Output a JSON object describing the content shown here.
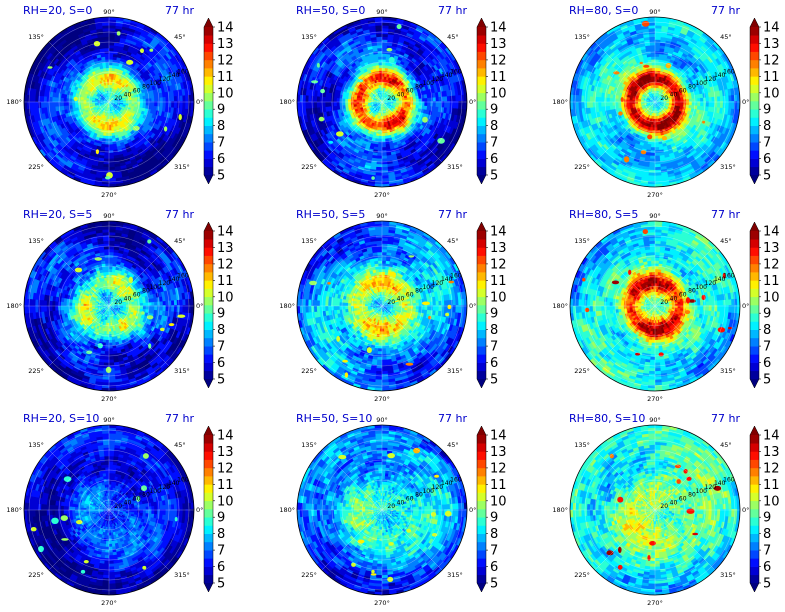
{
  "chart_data": {
    "type": "polar-contour",
    "colorbar": {
      "ticks": [
        5,
        6,
        7,
        8,
        9,
        10,
        11,
        12,
        13,
        14
      ],
      "extend": "both",
      "colormap": "jet"
    },
    "angle_ticks": [
      "0°",
      "45°",
      "90°",
      "135°",
      "180°",
      "225°",
      "270°",
      "315°"
    ],
    "panels": [
      {
        "title": "RH=20, S=0",
        "time": "77 hr",
        "radius_ticks": [
          "20",
          "40",
          "60",
          "80",
          "100",
          "120",
          "140",
          "160"
        ],
        "ring_value": 10.5,
        "ring_sharpness": 0.3,
        "eye_value": 8.5,
        "background_value": 6.5,
        "edge_value": 5.4,
        "spiral_arms": 2,
        "noise": 0.55,
        "cell_value": 9.5
      },
      {
        "title": "RH=50, S=0",
        "time": "77 hr",
        "radius_ticks": [
          "20",
          "40",
          "60",
          "80",
          "100",
          "120",
          "140",
          "160"
        ],
        "ring_value": 12.5,
        "ring_sharpness": 0.45,
        "eye_value": 9.0,
        "background_value": 6.8,
        "edge_value": 5.8,
        "spiral_arms": 3,
        "noise": 0.7,
        "cell_value": 9.0
      },
      {
        "title": "RH=80, S=0",
        "time": "77 hr",
        "radius_ticks": [
          "20",
          "40",
          "60",
          "80",
          "100",
          "120",
          "140",
          "160"
        ],
        "ring_value": 13.8,
        "ring_sharpness": 0.6,
        "eye_value": 8.0,
        "background_value": 8.3,
        "edge_value": 7.8,
        "spiral_arms": 2,
        "noise": 0.6,
        "cell_value": 11.5
      },
      {
        "title": "RH=20, S=5",
        "time": "77 hr",
        "radius_ticks": [
          "20",
          "40",
          "60",
          "80",
          "100",
          "120",
          "140",
          "160"
        ],
        "ring_value": 10.0,
        "ring_sharpness": 0.25,
        "eye_value": 8.0,
        "background_value": 6.6,
        "edge_value": 5.6,
        "spiral_arms": 3,
        "noise": 0.75,
        "cell_value": 9.5
      },
      {
        "title": "RH=50, S=5",
        "time": "77 hr",
        "radius_ticks": [
          "20",
          "40",
          "60",
          "80",
          "100",
          "120",
          "140",
          "160"
        ],
        "ring_value": 10.8,
        "ring_sharpness": 0.3,
        "eye_value": 7.5,
        "background_value": 8.0,
        "edge_value": 6.8,
        "spiral_arms": 2,
        "noise": 0.8,
        "cell_value": 10.5
      },
      {
        "title": "RH=80, S=5",
        "time": "77 hr",
        "radius_ticks": [
          "20",
          "40",
          "60",
          "80",
          "100",
          "120",
          "140",
          "160"
        ],
        "ring_value": 13.2,
        "ring_sharpness": 0.5,
        "eye_value": 9.0,
        "background_value": 8.6,
        "edge_value": 8.0,
        "spiral_arms": 2,
        "noise": 0.75,
        "cell_value": 12.5
      },
      {
        "title": "RH=20, S=10",
        "time": "77 hr",
        "radius_ticks": [
          "20",
          "40",
          "60",
          "80",
          "100",
          "120",
          "140",
          "160"
        ],
        "ring_value": 7.0,
        "ring_sharpness": 0.1,
        "eye_value": 6.5,
        "background_value": 6.2,
        "edge_value": 5.6,
        "spiral_arms": 1,
        "noise": 0.55,
        "cell_value": 9.0
      },
      {
        "title": "RH=50, S=10",
        "time": "77 hr",
        "radius_ticks": [
          "20",
          "40",
          "60",
          "80",
          "100",
          "120",
          "140",
          "160"
        ],
        "ring_value": 8.8,
        "ring_sharpness": 0.15,
        "eye_value": 8.5,
        "background_value": 8.2,
        "edge_value": 6.5,
        "spiral_arms": 1,
        "noise": 0.8,
        "cell_value": 10.5
      },
      {
        "title": "RH=80, S=10",
        "time": "77 hr",
        "radius_ticks": [
          "20",
          "40",
          "60",
          "80",
          "100",
          "120",
          "140",
          "160"
        ],
        "ring_value": 9.8,
        "ring_sharpness": 0.15,
        "eye_value": 9.5,
        "background_value": 9.0,
        "edge_value": 8.3,
        "spiral_arms": 1,
        "noise": 0.8,
        "cell_value": 12.5
      }
    ]
  }
}
